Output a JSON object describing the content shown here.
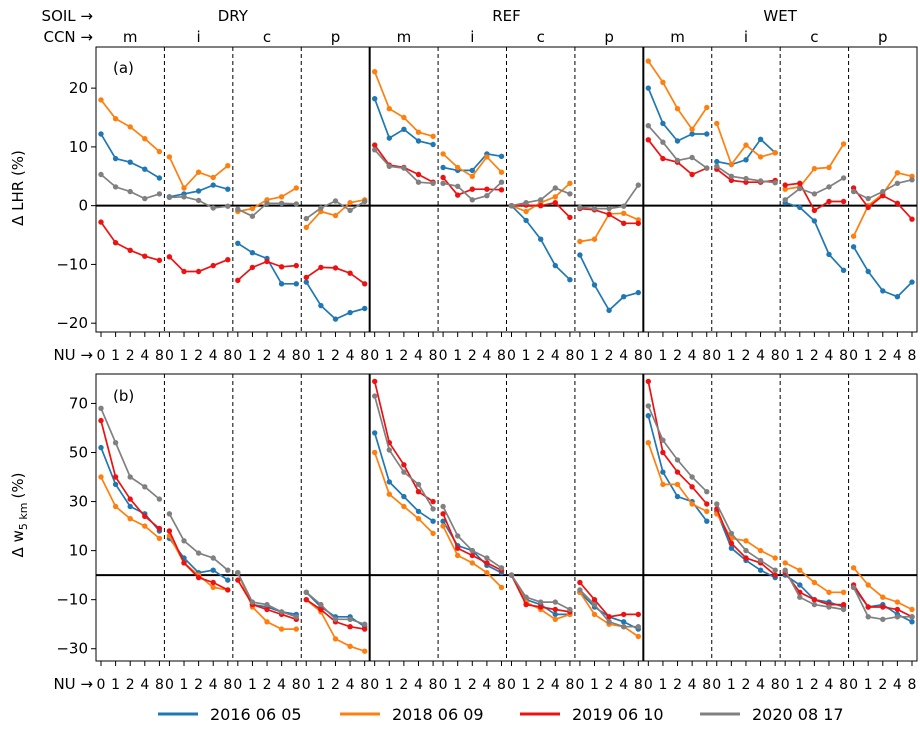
{
  "header": {
    "soil_label": "SOIL →",
    "ccn_label": "CCN →",
    "nu_label": "NU →",
    "soil_groups": [
      "DRY",
      "REF",
      "WET"
    ],
    "ccn_types": [
      "m",
      "i",
      "c",
      "p"
    ],
    "nu_ticks": [
      "0",
      "1",
      "2",
      "4",
      "8"
    ]
  },
  "legend": {
    "entries": [
      {
        "label": "2016 06 05",
        "color": "#1f77b4"
      },
      {
        "label": "2018 06 09",
        "color": "#ff7f0e"
      },
      {
        "label": "2019 06 10",
        "color": "#ee1111"
      },
      {
        "label": "2020 08 17",
        "color": "#808080"
      }
    ]
  },
  "chart_data": [
    {
      "type": "line",
      "panel_label": "(a)",
      "ylabel": "Δ LHR (%)",
      "ylim": [
        -21.5,
        27
      ],
      "yticks": [
        -20,
        -10,
        0,
        10,
        20
      ],
      "x": [
        0,
        1,
        2,
        4,
        8
      ],
      "series": [
        {
          "name": "2016 06 05",
          "color": "#1f77b4",
          "groups": [
            [
              12.2,
              8.0,
              7.4,
              6.2,
              4.7
            ],
            [
              1.5,
              2.0,
              2.5,
              3.5,
              2.8
            ],
            [
              -6.4,
              -8.0,
              -9.0,
              -13.3,
              -13.3
            ],
            [
              -13.0,
              -17.0,
              -19.3,
              -18.2,
              -17.5
            ],
            [
              18.2,
              11.5,
              13.0,
              11.0,
              10.4
            ],
            [
              6.5,
              6.0,
              6.0,
              8.8,
              8.4
            ],
            [
              0.0,
              -2.5,
              -5.7,
              -10.2,
              -12.6
            ],
            [
              -8.4,
              -13.5,
              -17.8,
              -15.5,
              -14.8
            ],
            [
              20.0,
              14.0,
              11.0,
              12.2,
              12.2
            ],
            [
              7.5,
              7.0,
              7.8,
              11.3,
              9.0
            ],
            [
              0.5,
              -0.3,
              -2.6,
              -8.3,
              -11.0
            ],
            [
              -7.0,
              -11.2,
              -14.5,
              -15.5,
              -13.0
            ]
          ]
        },
        {
          "name": "2018 06 09",
          "color": "#ff7f0e",
          "groups": [
            [
              18.0,
              14.8,
              13.4,
              11.4,
              9.2
            ],
            [
              8.3,
              3.0,
              5.7,
              4.8,
              6.8
            ],
            [
              -1.0,
              -0.5,
              1.0,
              1.5,
              3.0
            ],
            [
              -3.7,
              -1.0,
              -1.7,
              0.5,
              1.0
            ],
            [
              22.8,
              16.5,
              15.0,
              12.5,
              11.8
            ],
            [
              8.8,
              6.5,
              5.0,
              8.3,
              5.7
            ],
            [
              0.0,
              -1.0,
              0.5,
              1.5,
              3.8
            ],
            [
              -6.1,
              -5.7,
              -1.4,
              -1.3,
              -2.4
            ],
            [
              24.6,
              21.0,
              16.5,
              13.0,
              16.7
            ],
            [
              14.0,
              7.0,
              10.3,
              8.3,
              9.0
            ],
            [
              2.8,
              3.2,
              6.3,
              6.5,
              10.5
            ],
            [
              -5.2,
              0.0,
              2.0,
              5.6,
              5.0
            ]
          ]
        },
        {
          "name": "2019 06 10",
          "color": "#ee1111",
          "groups": [
            [
              -2.8,
              -6.3,
              -7.6,
              -8.6,
              -9.3
            ],
            [
              -8.7,
              -11.2,
              -11.2,
              -10.2,
              -9.2
            ],
            [
              -12.7,
              -10.5,
              -9.5,
              -10.4,
              -10.2
            ],
            [
              -12.2,
              -10.5,
              -10.6,
              -11.5,
              -13.3
            ],
            [
              10.3,
              6.9,
              6.5,
              5.3,
              4.0
            ],
            [
              4.8,
              1.8,
              2.8,
              2.8,
              2.7
            ],
            [
              0.0,
              0.1,
              0.0,
              0.5,
              -2.0
            ],
            [
              -0.5,
              -0.7,
              -1.5,
              -3.0,
              -3.0
            ],
            [
              11.2,
              8.0,
              7.4,
              5.3,
              6.4
            ],
            [
              6.2,
              4.3,
              4.0,
              4.0,
              4.3
            ],
            [
              3.5,
              3.8,
              -0.8,
              0.7,
              0.7
            ],
            [
              3.0,
              -0.3,
              1.7,
              0.4,
              -2.3
            ]
          ]
        },
        {
          "name": "2020 08 17",
          "color": "#808080",
          "groups": [
            [
              5.3,
              3.2,
              2.4,
              1.2,
              2.0
            ],
            [
              1.4,
              1.5,
              0.9,
              -0.4,
              -0.1
            ],
            [
              -0.6,
              -1.8,
              0.4,
              0.4,
              0.3
            ],
            [
              -2.2,
              -0.4,
              0.8,
              -0.8,
              0.7
            ],
            [
              9.5,
              6.7,
              6.4,
              4.0,
              3.8
            ],
            [
              3.8,
              3.3,
              1.0,
              1.7,
              4.0
            ],
            [
              0.0,
              0.5,
              1.0,
              3.0,
              2.0
            ],
            [
              -0.3,
              -0.5,
              -0.5,
              -0.1,
              3.5
            ],
            [
              13.6,
              10.8,
              7.7,
              8.2,
              6.4
            ],
            [
              6.7,
              5.0,
              4.6,
              4.2,
              3.9
            ],
            [
              1.0,
              2.9,
              2.0,
              3.2,
              4.7
            ],
            [
              2.4,
              1.2,
              2.4,
              3.8,
              4.4
            ]
          ]
        }
      ]
    },
    {
      "type": "line",
      "panel_label": "(b)",
      "ylabel": "Δ w",
      "ylabel_sub": "5 km",
      "ylabel_unit": "(%)",
      "ylim": [
        -35,
        82
      ],
      "yticks": [
        -30,
        -10,
        10,
        30,
        50,
        70
      ],
      "x": [
        0,
        1,
        2,
        4,
        8
      ],
      "series": [
        {
          "name": "2016 06 05",
          "color": "#1f77b4",
          "groups": [
            [
              52,
              37,
              28,
              25,
              18
            ],
            [
              15,
              7,
              1,
              2,
              -2
            ],
            [
              1,
              -12,
              -13,
              -15,
              -16
            ],
            [
              -7,
              -13,
              -17,
              -17,
              -21
            ],
            [
              58,
              38,
              32,
              26,
              22
            ],
            [
              22,
              12,
              10,
              4,
              1
            ],
            [
              0,
              -10,
              -12,
              -16,
              -16
            ],
            [
              -7,
              -13,
              -17,
              -19,
              -22
            ],
            [
              65,
              42,
              32,
              30,
              22
            ],
            [
              26,
              11,
              6,
              2,
              -1
            ],
            [
              0,
              -4,
              -10,
              -11,
              -13
            ],
            [
              -5,
              -13,
              -12,
              -16,
              -19
            ]
          ]
        },
        {
          "name": "2018 06 09",
          "color": "#ff7f0e",
          "groups": [
            [
              40,
              28,
              23,
              20,
              15
            ],
            [
              16,
              5,
              0,
              -5,
              -6
            ],
            [
              1,
              -13,
              -19,
              -22,
              -22
            ],
            [
              -10,
              -15,
              -26,
              -29,
              -31
            ],
            [
              50,
              33,
              28,
              23,
              17
            ],
            [
              20,
              8,
              5,
              1,
              -5
            ],
            [
              0,
              -11,
              -14,
              -18,
              -16
            ],
            [
              -7,
              -16,
              -20,
              -21,
              -25
            ],
            [
              54,
              37,
              37,
              29,
              26
            ],
            [
              25,
              15,
              14,
              10,
              7
            ],
            [
              5,
              2,
              -3,
              -7,
              -7
            ],
            [
              3,
              -4,
              -9,
              -11,
              -14
            ]
          ]
        },
        {
          "name": "2019 06 10",
          "color": "#ee1111",
          "groups": [
            [
              63,
              40,
              31,
              24,
              19
            ],
            [
              18,
              5,
              -1,
              -3,
              -6
            ],
            [
              -2,
              -12,
              -14,
              -16,
              -18
            ],
            [
              -10,
              -14,
              -19,
              -21,
              -22
            ],
            [
              79,
              54,
              45,
              34,
              30
            ],
            [
              25,
              11,
              8,
              5,
              2
            ],
            [
              0,
              -12,
              -13,
              -14,
              -15
            ],
            [
              -3,
              -10,
              -17,
              -16,
              -16
            ],
            [
              79,
              50,
              42,
              36,
              29
            ],
            [
              27,
              13,
              7,
              5,
              0
            ],
            [
              1,
              -7,
              -10,
              -12,
              -12
            ],
            [
              -4,
              -13,
              -13,
              -14,
              -17
            ]
          ]
        },
        {
          "name": "2020 08 17",
          "color": "#808080",
          "groups": [
            [
              68,
              54,
              40,
              36,
              31
            ],
            [
              25,
              14,
              9,
              7,
              2
            ],
            [
              1,
              -11,
              -12,
              -15,
              -17
            ],
            [
              -7,
              -12,
              -18,
              -18,
              -20
            ],
            [
              73,
              51,
              42,
              37,
              27
            ],
            [
              28,
              16,
              10,
              7,
              3
            ],
            [
              0,
              -9,
              -11,
              -11,
              -14
            ],
            [
              -6,
              -12,
              -19,
              -21,
              -21
            ],
            [
              69,
              55,
              47,
              40,
              34
            ],
            [
              29,
              17,
              10,
              6,
              2
            ],
            [
              2,
              -9,
              -12,
              -13,
              -14
            ],
            [
              -5,
              -17,
              -18,
              -17,
              -17
            ]
          ]
        }
      ]
    }
  ]
}
